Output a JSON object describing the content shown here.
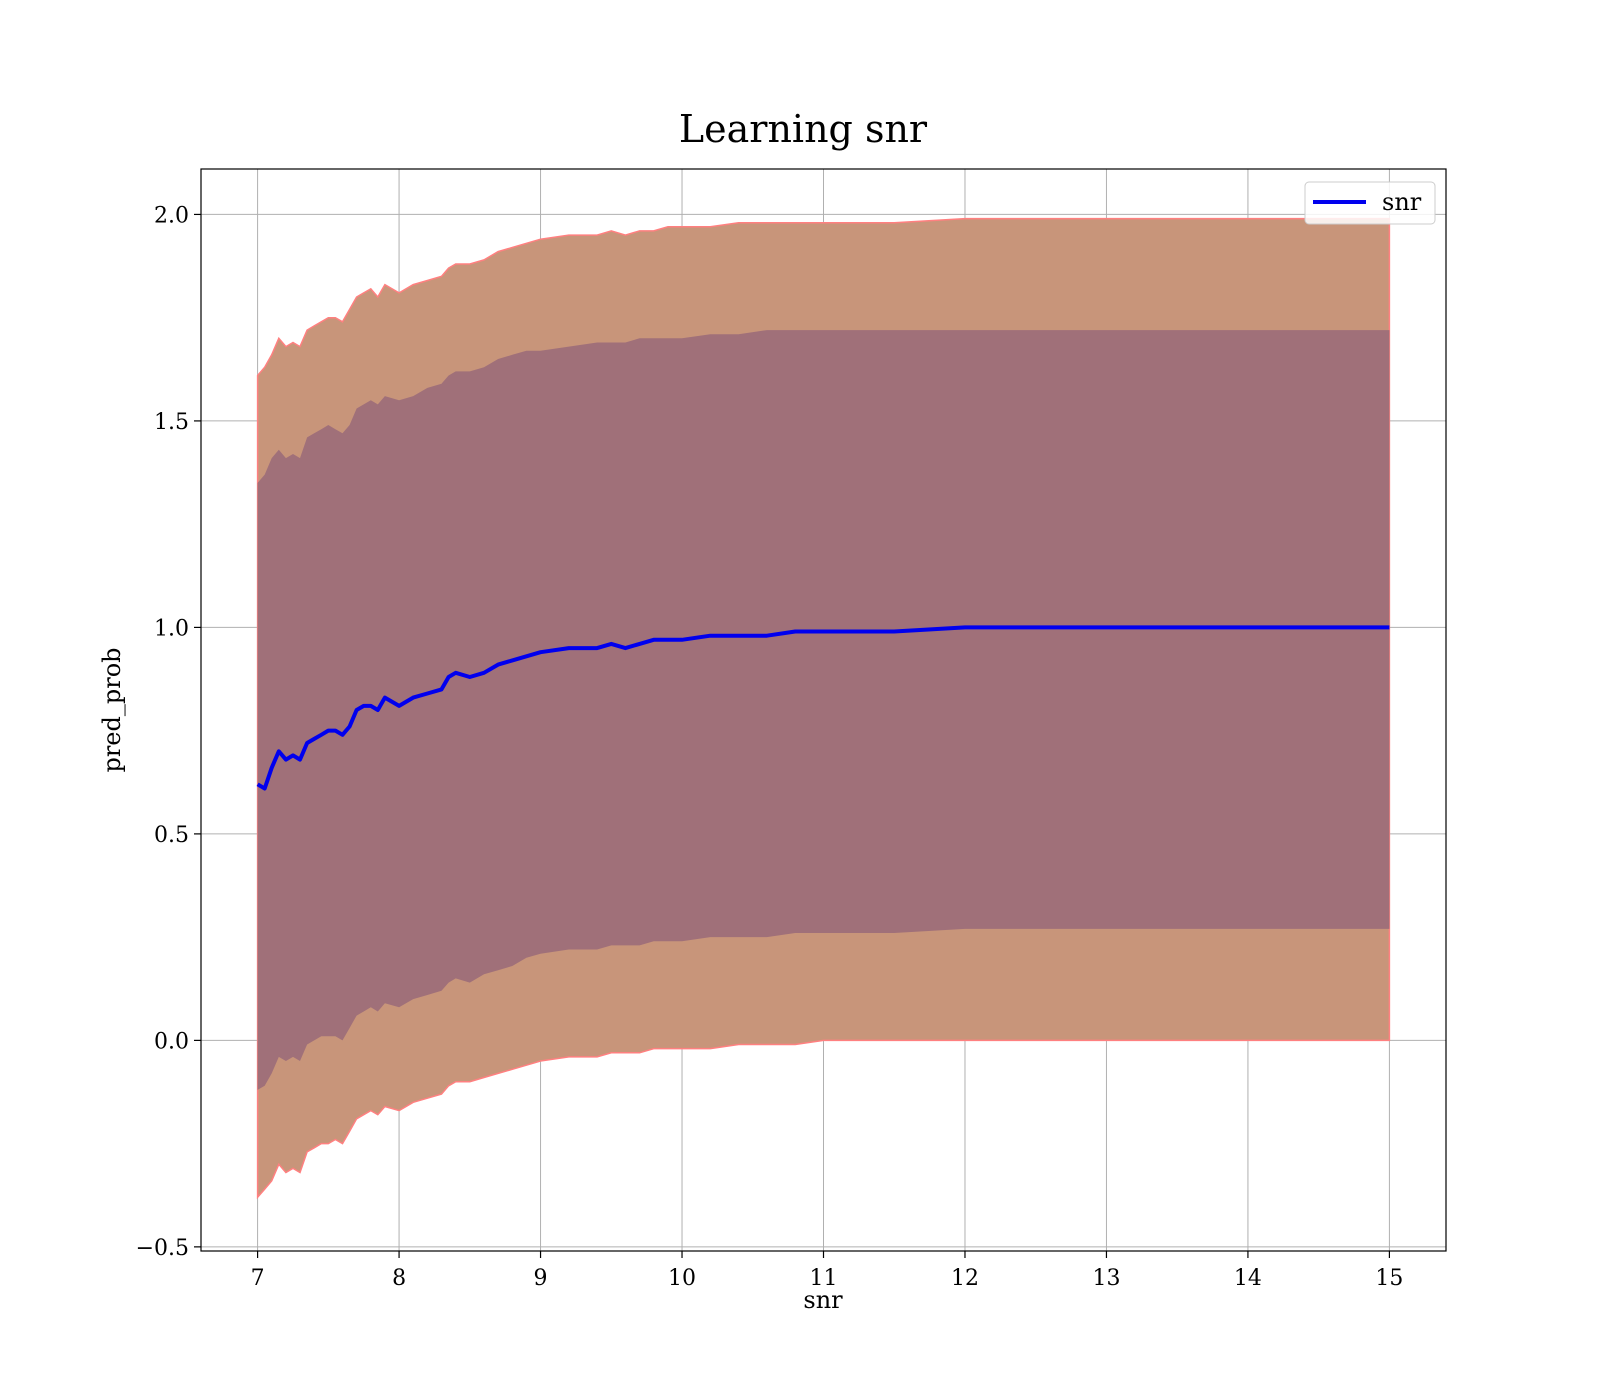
{
  "chart_data": {
    "type": "line",
    "title": "Learning snr",
    "xlabel": "snr",
    "ylabel": "pred_prob",
    "xlim": [
      6.6,
      15.4
    ],
    "ylim": [
      -0.51,
      2.11
    ],
    "x_ticks": [
      7,
      8,
      9,
      10,
      11,
      12,
      13,
      14,
      15
    ],
    "y_ticks": [
      -0.5,
      0.0,
      0.5,
      1.0,
      1.5,
      2.0
    ],
    "y_tick_labels": [
      "−0.5",
      "0.0",
      "0.5",
      "1.0",
      "1.5",
      "2.0"
    ],
    "grid": true,
    "legend": {
      "position": "top-right",
      "entries": [
        "snr"
      ]
    },
    "colors": {
      "line": "#0000ee",
      "outer_band": "#c8957a",
      "inner_band": "#a07079",
      "band_edge": "#ff8080",
      "grid": "#b0b0b0"
    },
    "series": [
      {
        "name": "snr",
        "x": [
          7.0,
          7.05,
          7.1,
          7.15,
          7.2,
          7.25,
          7.3,
          7.35,
          7.4,
          7.45,
          7.5,
          7.55,
          7.6,
          7.65,
          7.7,
          7.75,
          7.8,
          7.85,
          7.9,
          8.0,
          8.1,
          8.2,
          8.3,
          8.35,
          8.4,
          8.5,
          8.6,
          8.7,
          8.8,
          8.9,
          9.0,
          9.2,
          9.4,
          9.5,
          9.6,
          9.7,
          9.8,
          9.9,
          10.0,
          10.2,
          10.4,
          10.6,
          10.8,
          11.0,
          11.5,
          12.0,
          12.5,
          13.0,
          13.5,
          14.0,
          14.5,
          15.0
        ],
        "y": [
          0.62,
          0.61,
          0.66,
          0.7,
          0.68,
          0.69,
          0.68,
          0.72,
          0.73,
          0.74,
          0.75,
          0.75,
          0.74,
          0.76,
          0.8,
          0.81,
          0.81,
          0.8,
          0.83,
          0.81,
          0.83,
          0.84,
          0.85,
          0.88,
          0.89,
          0.88,
          0.89,
          0.91,
          0.92,
          0.93,
          0.94,
          0.95,
          0.95,
          0.96,
          0.95,
          0.96,
          0.97,
          0.97,
          0.97,
          0.98,
          0.98,
          0.98,
          0.99,
          0.99,
          0.99,
          1.0,
          1.0,
          1.0,
          1.0,
          1.0,
          1.0,
          1.0
        ],
        "band_inner_upper": [
          1.35,
          1.37,
          1.41,
          1.43,
          1.41,
          1.42,
          1.41,
          1.46,
          1.47,
          1.48,
          1.49,
          1.48,
          1.47,
          1.49,
          1.53,
          1.54,
          1.55,
          1.54,
          1.56,
          1.55,
          1.56,
          1.58,
          1.59,
          1.61,
          1.62,
          1.62,
          1.63,
          1.65,
          1.66,
          1.67,
          1.67,
          1.68,
          1.69,
          1.69,
          1.69,
          1.7,
          1.7,
          1.7,
          1.7,
          1.71,
          1.71,
          1.72,
          1.72,
          1.72,
          1.72,
          1.72,
          1.72,
          1.72,
          1.72,
          1.72,
          1.72,
          1.72
        ],
        "band_inner_lower": [
          -0.12,
          -0.11,
          -0.08,
          -0.04,
          -0.05,
          -0.04,
          -0.05,
          -0.01,
          0.0,
          0.01,
          0.01,
          0.01,
          0.0,
          0.03,
          0.06,
          0.07,
          0.08,
          0.07,
          0.09,
          0.08,
          0.1,
          0.11,
          0.12,
          0.14,
          0.15,
          0.14,
          0.16,
          0.17,
          0.18,
          0.2,
          0.21,
          0.22,
          0.22,
          0.23,
          0.23,
          0.23,
          0.24,
          0.24,
          0.24,
          0.25,
          0.25,
          0.25,
          0.26,
          0.26,
          0.26,
          0.27,
          0.27,
          0.27,
          0.27,
          0.27,
          0.27,
          0.27
        ],
        "band_outer_upper": [
          1.61,
          1.63,
          1.66,
          1.7,
          1.68,
          1.69,
          1.68,
          1.72,
          1.73,
          1.74,
          1.75,
          1.75,
          1.74,
          1.77,
          1.8,
          1.81,
          1.82,
          1.8,
          1.83,
          1.81,
          1.83,
          1.84,
          1.85,
          1.87,
          1.88,
          1.88,
          1.89,
          1.91,
          1.92,
          1.93,
          1.94,
          1.95,
          1.95,
          1.96,
          1.95,
          1.96,
          1.96,
          1.97,
          1.97,
          1.97,
          1.98,
          1.98,
          1.98,
          1.98,
          1.98,
          1.99,
          1.99,
          1.99,
          1.99,
          1.99,
          1.99,
          1.99
        ],
        "band_outer_lower": [
          -0.38,
          -0.36,
          -0.34,
          -0.3,
          -0.32,
          -0.31,
          -0.32,
          -0.27,
          -0.26,
          -0.25,
          -0.25,
          -0.24,
          -0.25,
          -0.22,
          -0.19,
          -0.18,
          -0.17,
          -0.18,
          -0.16,
          -0.17,
          -0.15,
          -0.14,
          -0.13,
          -0.11,
          -0.1,
          -0.1,
          -0.09,
          -0.08,
          -0.07,
          -0.06,
          -0.05,
          -0.04,
          -0.04,
          -0.03,
          -0.03,
          -0.03,
          -0.02,
          -0.02,
          -0.02,
          -0.02,
          -0.01,
          -0.01,
          -0.01,
          0.0,
          0.0,
          0.0,
          0.0,
          0.0,
          0.0,
          0.0,
          0.0,
          0.0
        ]
      }
    ]
  }
}
